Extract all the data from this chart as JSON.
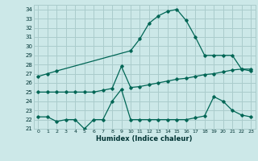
{
  "title": "",
  "xlabel": "Humidex (Indice chaleur)",
  "background_color": "#cce8e8",
  "grid_color": "#aacccc",
  "line_color": "#006655",
  "xlim": [
    -0.5,
    23.5
  ],
  "ylim": [
    21,
    34.5
  ],
  "xticks": [
    0,
    1,
    2,
    3,
    4,
    5,
    6,
    7,
    8,
    9,
    10,
    11,
    12,
    13,
    14,
    15,
    16,
    17,
    18,
    19,
    20,
    21,
    22,
    23
  ],
  "yticks": [
    21,
    22,
    23,
    24,
    25,
    26,
    27,
    28,
    29,
    30,
    31,
    32,
    33,
    34
  ],
  "series": [
    {
      "x": [
        0,
        1,
        2,
        10,
        11,
        12,
        13,
        14,
        15,
        16,
        17,
        18,
        19,
        20,
        21,
        22,
        23
      ],
      "y": [
        26.7,
        27.0,
        27.3,
        29.5,
        30.8,
        32.5,
        33.3,
        33.8,
        34.0,
        32.8,
        31.0,
        29.0,
        29.0,
        29.0,
        29.0,
        27.5,
        27.3
      ]
    },
    {
      "x": [
        0,
        1,
        2,
        3,
        4,
        5,
        6,
        7,
        8,
        9,
        10,
        11,
        12,
        13,
        14,
        15,
        16,
        17,
        18,
        19,
        20,
        21,
        22,
        23
      ],
      "y": [
        25.0,
        25.0,
        25.0,
        25.0,
        25.0,
        25.0,
        25.0,
        25.2,
        25.4,
        27.8,
        25.5,
        25.6,
        25.8,
        26.0,
        26.2,
        26.4,
        26.5,
        26.7,
        26.9,
        27.0,
        27.2,
        27.4,
        27.5,
        27.5
      ]
    },
    {
      "x": [
        0,
        1,
        2,
        3,
        4,
        5,
        6,
        7,
        8,
        9,
        10,
        11,
        12,
        13,
        14,
        15,
        16,
        17,
        18,
        19,
        20,
        21,
        22,
        23
      ],
      "y": [
        22.3,
        22.3,
        21.8,
        22.0,
        22.0,
        21.0,
        22.0,
        22.0,
        24.0,
        25.3,
        22.0,
        22.0,
        22.0,
        22.0,
        22.0,
        22.0,
        22.0,
        22.2,
        22.4,
        24.5,
        24.0,
        23.0,
        22.5,
        22.3
      ]
    }
  ]
}
